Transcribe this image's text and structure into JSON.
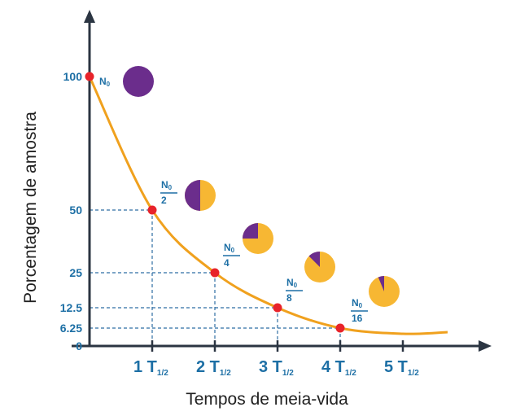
{
  "chart_data": {
    "type": "line",
    "xlabel": "Tempos de meia-vida",
    "ylabel": "Porcentagem de amostra",
    "y_ticks": [
      "0",
      "6.25",
      "12.5",
      "25",
      "50",
      "100"
    ],
    "x_ticks": [
      {
        "n": "1",
        "unit": "T",
        "sub": "1/2"
      },
      {
        "n": "2",
        "unit": "T",
        "sub": "1/2"
      },
      {
        "n": "3",
        "unit": "T",
        "sub": "1/2"
      },
      {
        "n": "4",
        "unit": "T",
        "sub": "1/2"
      },
      {
        "n": "5",
        "unit": "T",
        "sub": "1/2"
      }
    ],
    "points": [
      {
        "x": 0,
        "y": 100,
        "label": "N",
        "label_sub": "0",
        "denominator": ""
      },
      {
        "x": 1,
        "y": 50,
        "label": "N",
        "label_sub": "0",
        "denominator": "2"
      },
      {
        "x": 2,
        "y": 25,
        "label": "N",
        "label_sub": "0",
        "denominator": "4"
      },
      {
        "x": 3,
        "y": 12.5,
        "label": "N",
        "label_sub": "0",
        "denominator": "8"
      },
      {
        "x": 4,
        "y": 6.25,
        "label": "N",
        "label_sub": "0",
        "denominator": "16"
      }
    ],
    "pie_remaining_fraction": [
      1,
      0.5,
      0.25,
      0.125,
      0.0625
    ],
    "colors": {
      "curve": "#f0a11e",
      "point": "#e8232a",
      "remaining": "#6b2d8c",
      "decayed": "#f7b733",
      "axis": "#2b3542",
      "label": "#1d6fa5",
      "guide": "#2f6ea3"
    }
  }
}
